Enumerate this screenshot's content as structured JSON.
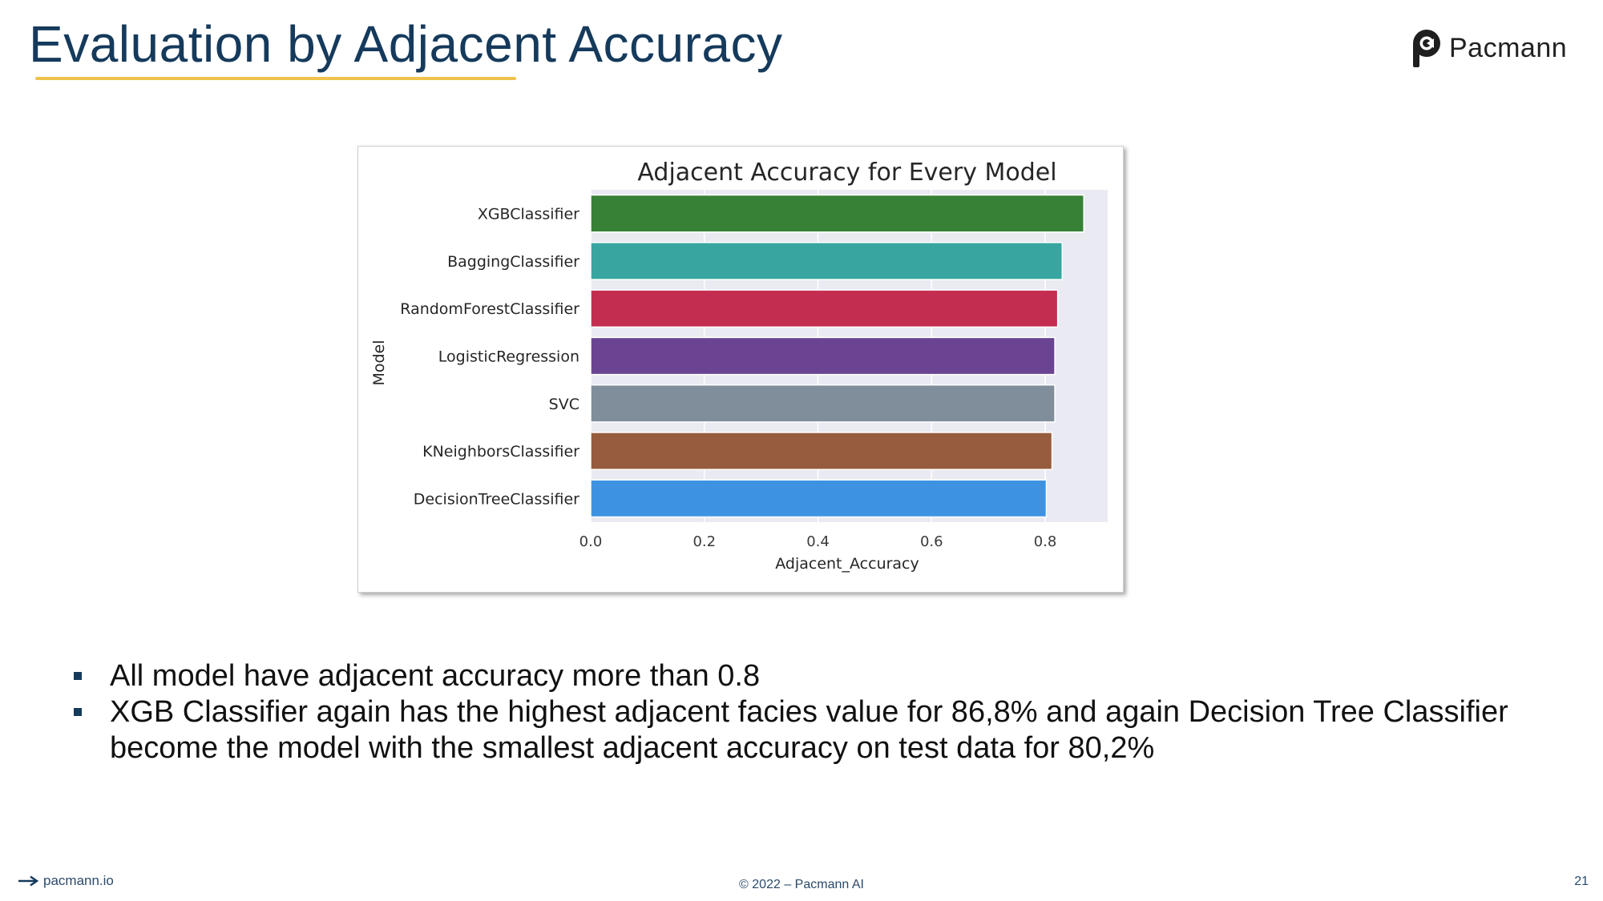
{
  "slide": {
    "title": "Evaluation by Adjacent Accuracy",
    "brand": "Pacmann",
    "footer_link": "pacmann.io",
    "copyright": "© 2022 – Pacmann AI",
    "page_number": "21",
    "accent_color": "#f0c24b",
    "title_color": "#153a5c"
  },
  "bullets": [
    "All model have adjacent accuracy more than 0.8",
    "XGB Classifier again has the highest adjacent facies value for 86,8% and  again Decision Tree Classifier become the model with the smallest adjacent accuracy on test data for 80,2%"
  ],
  "chart_data": {
    "type": "bar",
    "orientation": "horizontal",
    "title": "Adjacent Accuracy for Every Model",
    "xlabel": "Adjacent_Accuracy",
    "ylabel": "Model",
    "categories": [
      "XGBClassifier",
      "BaggingClassifier",
      "RandomForestClassifier",
      "LogisticRegression",
      "SVC",
      "KNeighborsClassifier",
      "DecisionTreeClassifier"
    ],
    "values": [
      0.868,
      0.83,
      0.822,
      0.817,
      0.817,
      0.812,
      0.802
    ],
    "colors": [
      "#368136",
      "#38a5a0",
      "#c32d4f",
      "#6a4492",
      "#808d9a",
      "#975b3d",
      "#3d93e2"
    ],
    "xlim": [
      0,
      0.91
    ],
    "xticks": [
      "0.0",
      "0.2",
      "0.4",
      "0.6",
      "0.8"
    ],
    "grid": true,
    "legend": "none",
    "background": "#eaeaf2"
  }
}
